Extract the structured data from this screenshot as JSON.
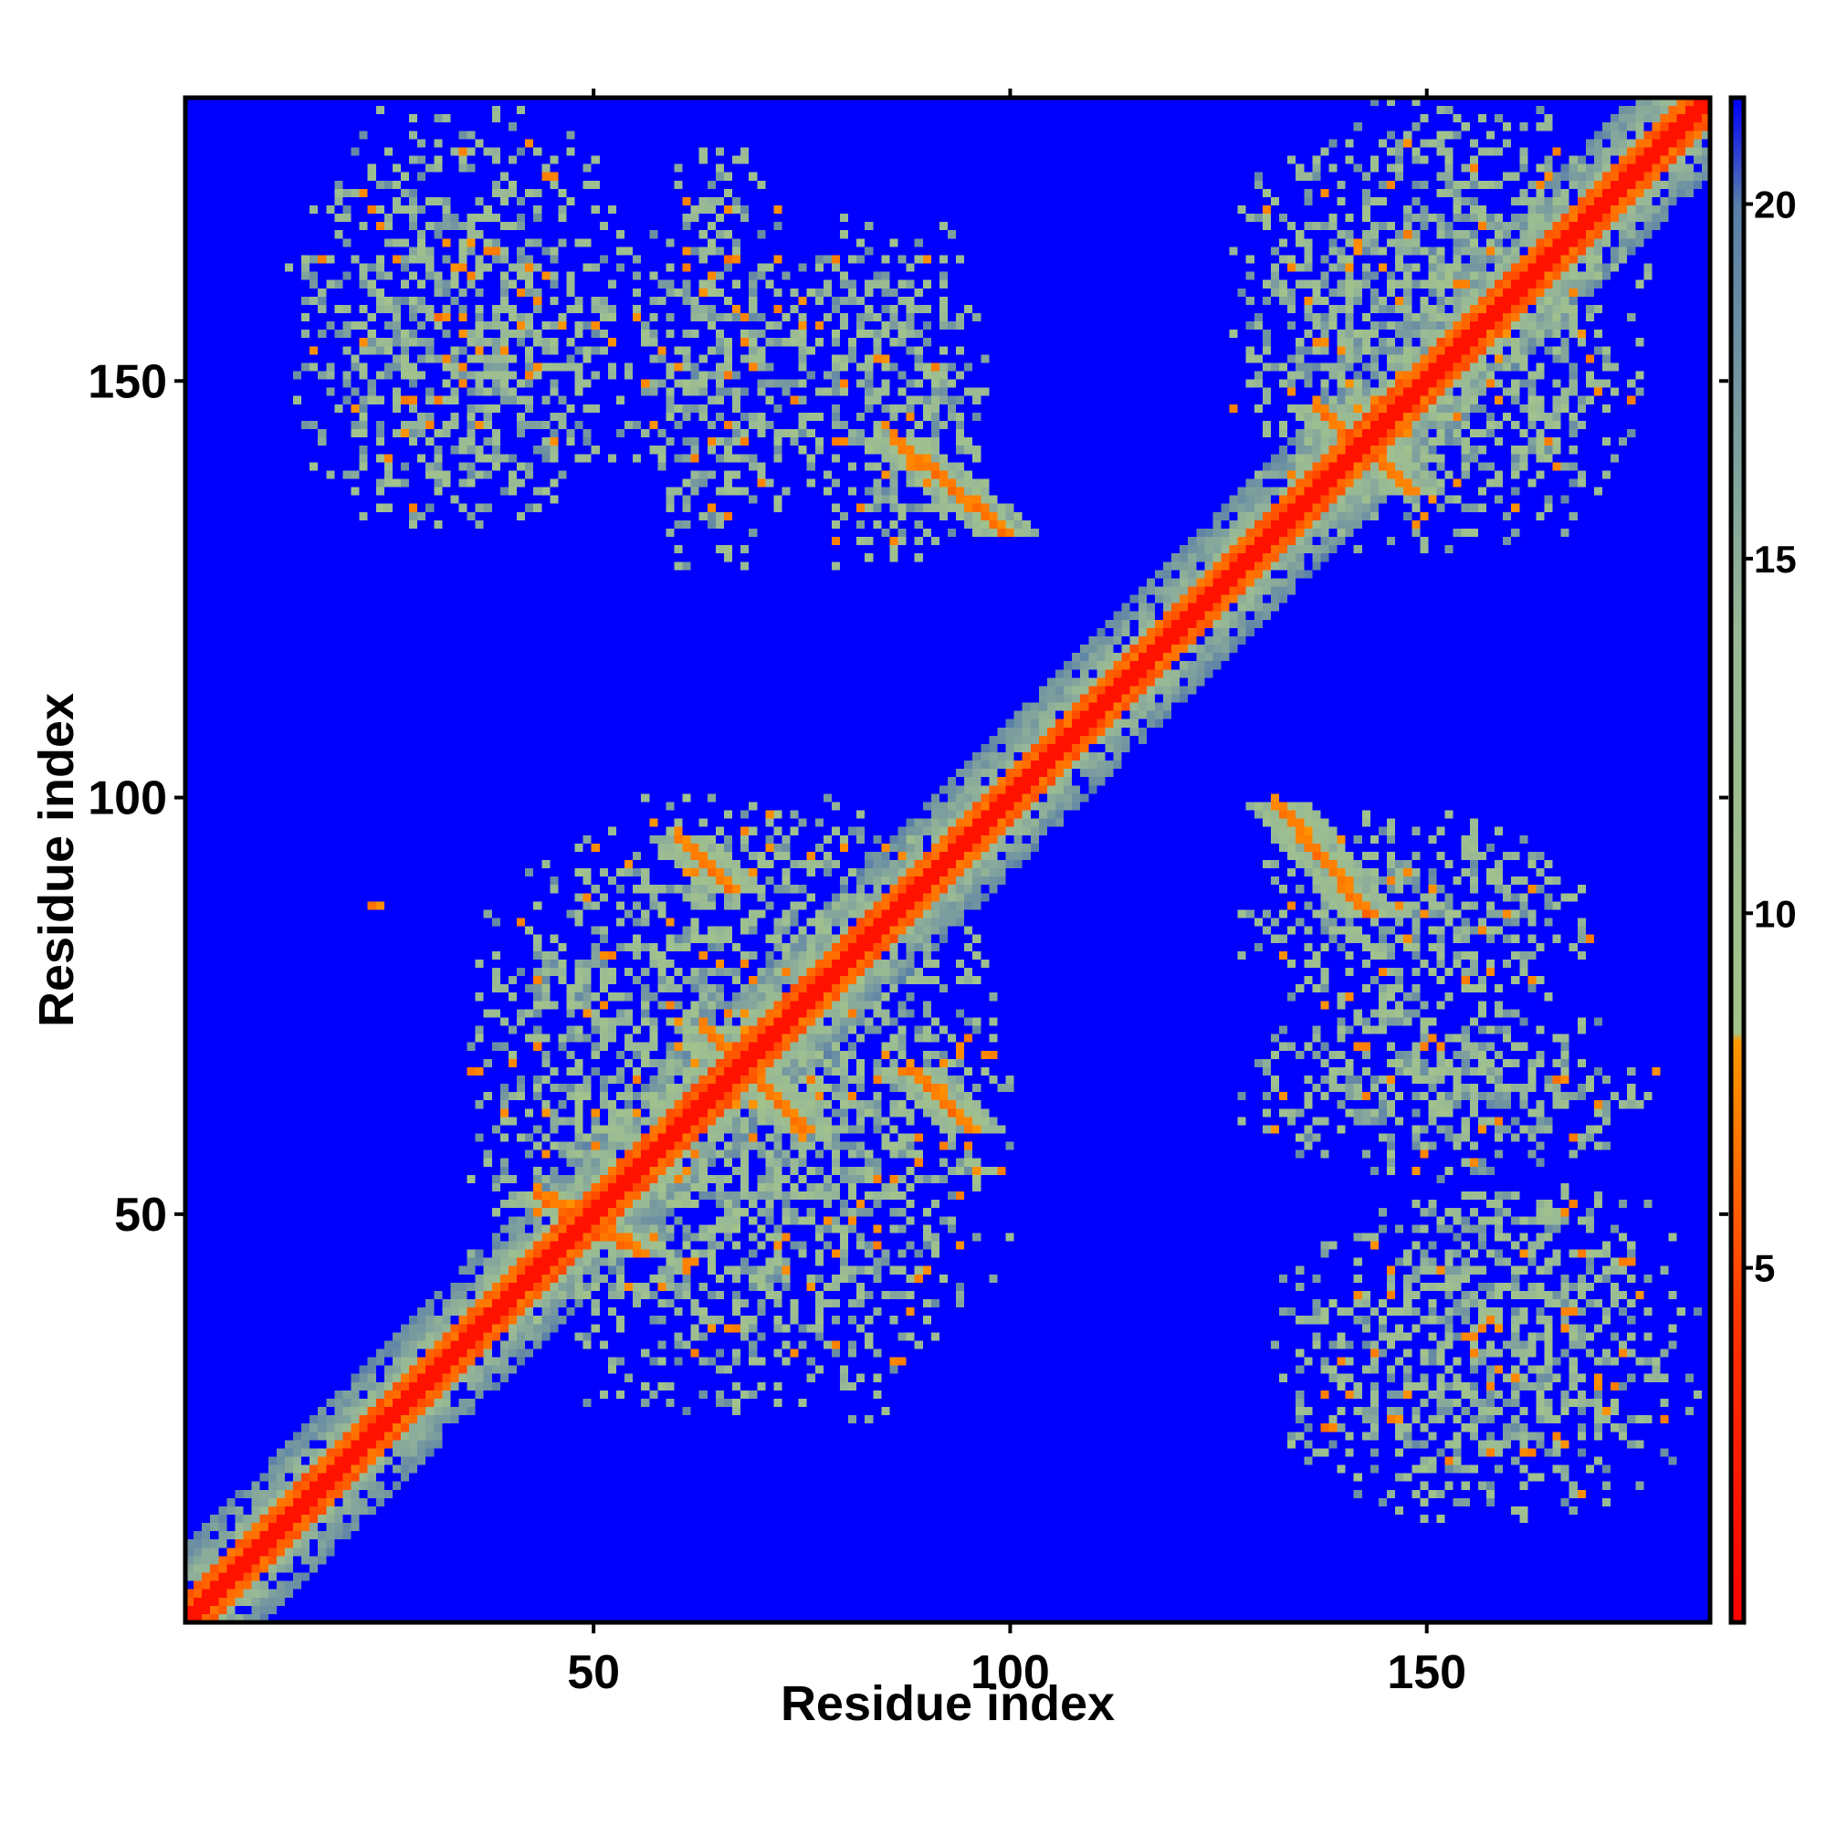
{
  "chart_data": {
    "type": "heatmap",
    "title": "",
    "xlabel": "Residue index",
    "ylabel": "Residue index",
    "n_residues": 184,
    "xlim": [
      1,
      184
    ],
    "ylim": [
      1,
      184
    ],
    "x_ticks": [
      50,
      100,
      150
    ],
    "y_ticks": [
      50,
      100,
      150
    ],
    "colorbar": {
      "ticks": [
        5,
        10,
        15,
        20
      ],
      "range": [
        0,
        21.5
      ],
      "stops": [
        {
          "value": 0,
          "color": "#ff0000"
        },
        {
          "value": 4,
          "color": "#ff3000"
        },
        {
          "value": 8.2,
          "color": "#ff9900"
        },
        {
          "value": 8.3,
          "color": "#a3c48a"
        },
        {
          "value": 14,
          "color": "#98b896"
        },
        {
          "value": 20,
          "color": "#5a7fa8"
        },
        {
          "value": 21.5,
          "color": "#0000ff"
        }
      ]
    },
    "background_color": "#0000ff",
    "background_value": 21.5,
    "diagonal": {
      "core_width": 3,
      "halo_width": 9
    },
    "contact_regions": [
      {
        "name": "n-terminal-block",
        "x": [
          35,
          100
        ],
        "y": [
          25,
          100
        ],
        "density": 0.5
      },
      {
        "name": "c-terminal-block",
        "x": [
          127,
          177
        ],
        "y": [
          130,
          184
        ],
        "density": 0.5
      },
      {
        "name": "upper-left-cluster-1",
        "x": [
          13,
          55
        ],
        "y": [
          132,
          183
        ],
        "density": 0.45
      },
      {
        "name": "upper-left-cluster-2",
        "x": [
          55,
          75
        ],
        "y": [
          128,
          178
        ],
        "density": 0.45
      },
      {
        "name": "upper-left-cluster-3",
        "x": [
          72,
          98
        ],
        "y": [
          128,
          170
        ],
        "density": 0.45
      },
      {
        "name": "lower-right-cluster-1",
        "x": [
          132,
          183
        ],
        "y": [
          13,
          55
        ],
        "density": 0.45
      },
      {
        "name": "lower-right-cluster-2",
        "x": [
          128,
          178
        ],
        "y": [
          55,
          75
        ],
        "density": 0.45
      },
      {
        "name": "lower-right-cluster-3",
        "x": [
          128,
          170
        ],
        "y": [
          72,
          98
        ],
        "density": 0.45
      }
    ],
    "antiparallel_strands": [
      {
        "x": [
          86,
          99
        ],
        "y": [
          143,
          132
        ]
      },
      {
        "x": [
          132,
          143
        ],
        "y": [
          99,
          86
        ]
      },
      {
        "x": [
          60,
          66
        ],
        "y": [
          95,
          89
        ]
      },
      {
        "x": [
          88,
          95
        ],
        "y": [
          67,
          60
        ]
      },
      {
        "x": [
          43,
          55
        ],
        "y": [
          52,
          45
        ]
      },
      {
        "x": [
          137,
          148
        ],
        "y": [
          147,
          137
        ]
      },
      {
        "x": [
          63,
          75
        ],
        "y": [
          72,
          60
        ]
      }
    ],
    "hotspots": [
      {
        "x": 44,
        "y": 175
      },
      {
        "x": 37,
        "y": 166
      },
      {
        "x": 31,
        "y": 158
      },
      {
        "x": 27,
        "y": 148
      },
      {
        "x": 66,
        "y": 165
      },
      {
        "x": 79,
        "y": 143
      },
      {
        "x": 23,
        "y": 87
      },
      {
        "x": 35,
        "y": 67
      },
      {
        "x": 66,
        "y": 36
      },
      {
        "x": 86,
        "y": 32
      },
      {
        "x": 174,
        "y": 44
      },
      {
        "x": 167,
        "y": 38
      },
      {
        "x": 155,
        "y": 35
      },
      {
        "x": 138,
        "y": 24
      },
      {
        "x": 146,
        "y": 25
      },
      {
        "x": 166,
        "y": 66
      },
      {
        "x": 137,
        "y": 155
      },
      {
        "x": 154,
        "y": 162
      },
      {
        "x": 147,
        "y": 144
      },
      {
        "x": 142,
        "y": 70
      }
    ]
  }
}
